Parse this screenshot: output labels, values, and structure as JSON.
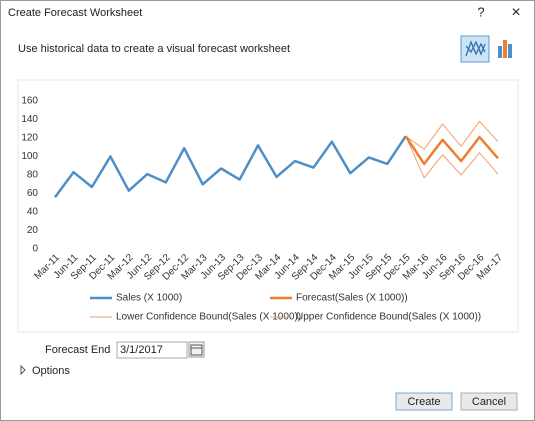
{
  "dialog": {
    "title": "Create Forecast Worksheet",
    "help": "?",
    "close": "×",
    "subtitle": "Use historical data to create a visual forecast worksheet",
    "forecast_end_label": "Forecast End",
    "forecast_end_value": "3/1/2017",
    "options": "Options",
    "create": "Create",
    "cancel": "Cancel"
  },
  "chart_data": {
    "type": "line",
    "categories": [
      "Mar-11",
      "Jun-11",
      "Sep-11",
      "Dec-11",
      "Mar-12",
      "Jun-12",
      "Sep-12",
      "Dec-12",
      "Mar-13",
      "Jun-13",
      "Sep-13",
      "Dec-13",
      "Mar-14",
      "Jun-14",
      "Sep-14",
      "Dec-14",
      "Mar-15",
      "Jun-15",
      "Sep-15",
      "Dec-15",
      "Mar-16",
      "Jun-16",
      "Sep-16",
      "Dec-16",
      "Mar-17"
    ],
    "series": [
      {
        "name": "Sales (X 1000)",
        "color": "#4f8fc9",
        "width": 2.5,
        "values": [
          56,
          83,
          67,
          100,
          63,
          81,
          72,
          109,
          70,
          87,
          75,
          112,
          78,
          95,
          88,
          116,
          82,
          99,
          92,
          122,
          null,
          null,
          null,
          null,
          null
        ]
      },
      {
        "name": "Forecast(Sales (X 1000))",
        "color": "#ed7d31",
        "width": 2.5,
        "values": [
          null,
          null,
          null,
          null,
          null,
          null,
          null,
          null,
          null,
          null,
          null,
          null,
          null,
          null,
          null,
          null,
          null,
          null,
          null,
          122,
          92,
          118,
          95,
          121,
          98
        ]
      },
      {
        "name": "Lower Confidence Bound(Sales (X 1000))",
        "color": "#f0a06a",
        "width": 1,
        "values": [
          null,
          null,
          null,
          null,
          null,
          null,
          null,
          null,
          null,
          null,
          null,
          null,
          null,
          null,
          null,
          null,
          null,
          null,
          null,
          122,
          77,
          102,
          80,
          104,
          81
        ]
      },
      {
        "name": "Upper Confidence Bound(Sales (X 1000))",
        "color": "#f0a06a",
        "width": 1,
        "values": [
          null,
          null,
          null,
          null,
          null,
          null,
          null,
          null,
          null,
          null,
          null,
          null,
          null,
          null,
          null,
          null,
          null,
          null,
          null,
          122,
          108,
          135,
          111,
          138,
          116
        ]
      }
    ],
    "ylim": [
      0,
      160
    ],
    "yticks": [
      0,
      20,
      40,
      60,
      80,
      100,
      120,
      140,
      160
    ],
    "grid": false
  }
}
